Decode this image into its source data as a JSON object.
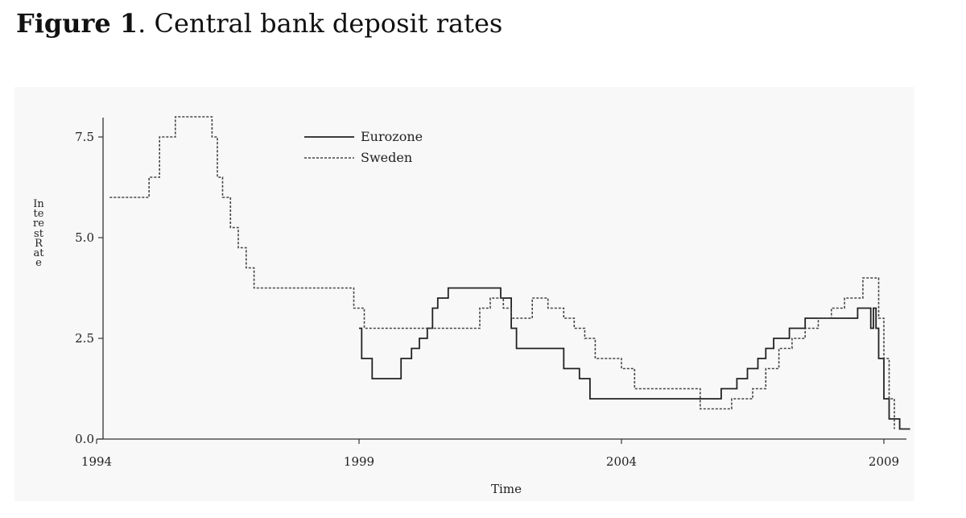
{
  "figure": {
    "label": "Figure 1",
    "separator": ".",
    "caption": "Central bank deposit rates"
  },
  "chart_data": {
    "type": "line",
    "xlabel": "Time",
    "ylabel": "Interest Rate",
    "xlim": [
      1994,
      2009.5
    ],
    "ylim": [
      0,
      8
    ],
    "xticks": [
      1994,
      1999,
      2004,
      2009
    ],
    "xtick_labels": [
      "1994",
      "1999",
      "2004",
      "2009"
    ],
    "yticks": [
      0,
      2.5,
      5,
      7.5
    ],
    "ytick_labels": [
      "0.0",
      "2.5",
      "5.0",
      "7.5"
    ],
    "grid": false,
    "legend_position": "top-center",
    "series": [
      {
        "name": "Eurozone",
        "style": "solid",
        "color": "#222222",
        "step": true,
        "x": [
          1999.0,
          1999.05,
          1999.25,
          1999.8,
          2000.0,
          2000.15,
          2000.3,
          2000.4,
          2000.5,
          2000.7,
          2000.8,
          2001.0,
          2001.7,
          2001.9,
          2002.0,
          2002.9,
          2003.2,
          2003.4,
          2003.5,
          2005.0,
          2005.9,
          2006.2,
          2006.4,
          2006.6,
          2006.75,
          2006.9,
          2007.0,
          2007.2,
          2007.5,
          2008.5,
          2008.75,
          2008.8,
          2008.85,
          2008.9,
          2008.95,
          2009.0,
          2009.1,
          2009.3,
          2009.5
        ],
        "y": [
          2.75,
          2.0,
          1.5,
          2.0,
          2.25,
          2.5,
          2.75,
          3.25,
          3.5,
          3.75,
          3.75,
          3.75,
          3.5,
          2.75,
          2.25,
          1.75,
          1.5,
          1.0,
          1.0,
          1.0,
          1.25,
          1.5,
          1.75,
          2.0,
          2.25,
          2.5,
          2.5,
          2.75,
          3.0,
          3.25,
          2.75,
          3.25,
          2.75,
          2.0,
          2.0,
          1.0,
          0.5,
          0.25,
          0.25
        ]
      },
      {
        "name": "Sweden",
        "style": "dashed",
        "color": "#444444",
        "step": true,
        "x": [
          1994.25,
          1995.0,
          1995.2,
          1995.5,
          1996.2,
          1996.3,
          1996.4,
          1996.55,
          1996.7,
          1996.85,
          1997.0,
          1998.9,
          1999.1,
          1999.25,
          1999.9,
          2001.3,
          2001.5,
          2001.75,
          2001.9,
          2002.3,
          2002.6,
          2002.9,
          2003.1,
          2003.3,
          2003.5,
          2004.0,
          2004.25,
          2005.0,
          2005.5,
          2006.1,
          2006.5,
          2006.75,
          2007.0,
          2007.25,
          2007.5,
          2007.75,
          2008.0,
          2008.25,
          2008.6,
          2008.9,
          2009.0,
          2009.1,
          2009.2
        ],
        "y": [
          6.0,
          6.5,
          7.5,
          8.0,
          7.5,
          6.5,
          6.0,
          5.25,
          4.75,
          4.25,
          3.75,
          3.25,
          2.75,
          2.75,
          2.75,
          3.25,
          3.5,
          3.25,
          3.0,
          3.5,
          3.25,
          3.0,
          2.75,
          2.5,
          2.0,
          1.75,
          1.25,
          1.25,
          0.75,
          1.0,
          1.25,
          1.75,
          2.25,
          2.5,
          2.75,
          3.0,
          3.25,
          3.5,
          4.0,
          3.0,
          2.0,
          1.0,
          0.25
        ]
      }
    ]
  }
}
